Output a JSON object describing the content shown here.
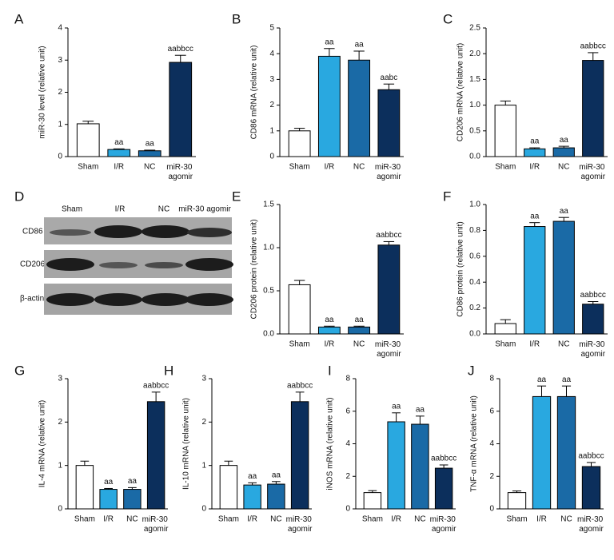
{
  "chart_data": [
    {
      "type": "bar",
      "panel_label": "A",
      "y_label": "miR-30 level (relative unit)",
      "categories": [
        "Sham",
        "I/R",
        "NC",
        "miR-30 agomir"
      ],
      "values": [
        1.02,
        0.22,
        0.18,
        2.93
      ],
      "errors": [
        0.08,
        0.02,
        0.02,
        0.22
      ],
      "value_labels": [
        null,
        "aa",
        "aa",
        "aabbcc"
      ],
      "colors": [
        "#ffffff",
        "#29a8e0",
        "#1a6aa6",
        "#0c2f5c"
      ],
      "ylim": [
        0,
        4
      ],
      "yticks": [
        0,
        1,
        2,
        3,
        4
      ]
    },
    {
      "type": "bar",
      "panel_label": "B",
      "y_label": "CD86 mRNA (relative unit)",
      "categories": [
        "Sham",
        "I/R",
        "NC",
        "miR-30 agomir"
      ],
      "values": [
        1.0,
        3.9,
        3.75,
        2.6
      ],
      "errors": [
        0.1,
        0.3,
        0.35,
        0.22
      ],
      "value_labels": [
        null,
        "aa",
        "aa",
        "aabc"
      ],
      "colors": [
        "#ffffff",
        "#29a8e0",
        "#1a6aa6",
        "#0c2f5c"
      ],
      "ylim": [
        0,
        5
      ],
      "yticks": [
        0,
        1,
        2,
        3,
        4,
        5
      ]
    },
    {
      "type": "bar",
      "panel_label": "C",
      "y_label": "CD206 mRNA (relative unit)",
      "categories": [
        "Sham",
        "I/R",
        "NC",
        "miR-30 agomir"
      ],
      "values": [
        1.0,
        0.15,
        0.17,
        1.87
      ],
      "errors": [
        0.08,
        0.02,
        0.03,
        0.15
      ],
      "value_labels": [
        null,
        "aa",
        "aa",
        "aabbcc"
      ],
      "colors": [
        "#ffffff",
        "#29a8e0",
        "#1a6aa6",
        "#0c2f5c"
      ],
      "ylim": [
        0,
        2.5
      ],
      "yticks": [
        {
          "value": 0,
          "label": "0.0"
        },
        0.5,
        {
          "value": 1,
          "label": "1.0"
        },
        1.5,
        {
          "value": 2,
          "label": "2.0"
        },
        2.5
      ]
    },
    {
      "type": "bar",
      "panel_label": "E",
      "y_label": "CD206 protein (relative unit)",
      "categories": [
        "Sham",
        "I/R",
        "NC",
        "miR-30 agomir"
      ],
      "values": [
        0.57,
        0.08,
        0.08,
        1.03
      ],
      "errors": [
        0.05,
        0.01,
        0.01,
        0.04
      ],
      "value_labels": [
        null,
        "aa",
        "aa",
        "aabbcc"
      ],
      "colors": [
        "#ffffff",
        "#29a8e0",
        "#1a6aa6",
        "#0c2f5c"
      ],
      "ylim": [
        0,
        1.5
      ],
      "yticks": [
        {
          "value": 0,
          "label": "0.0"
        },
        0.5,
        {
          "value": 1,
          "label": "1.0"
        },
        1.5
      ]
    },
    {
      "type": "bar",
      "panel_label": "F",
      "y_label": "CD86 protein (relative unit)",
      "categories": [
        "Sham",
        "I/R",
        "NC",
        "miR-30 agomir"
      ],
      "values": [
        0.08,
        0.83,
        0.87,
        0.23
      ],
      "errors": [
        0.03,
        0.03,
        0.03,
        0.02
      ],
      "value_labels": [
        null,
        "aa",
        "aa",
        "aabbcc"
      ],
      "colors": [
        "#ffffff",
        "#29a8e0",
        "#1a6aa6",
        "#0c2f5c"
      ],
      "ylim": [
        0,
        1
      ],
      "yticks": [
        {
          "value": 0,
          "label": "0.0"
        },
        0.2,
        0.4,
        0.6,
        0.8,
        {
          "value": 1,
          "label": "1.0"
        }
      ]
    },
    {
      "type": "bar",
      "panel_label": "G",
      "y_label": "IL-4 mRNA (relative unit)",
      "categories": [
        "Sham",
        "I/R",
        "NC",
        "miR-30 agomir"
      ],
      "values": [
        1.0,
        0.45,
        0.45,
        2.47
      ],
      "errors": [
        0.1,
        0.02,
        0.04,
        0.22
      ],
      "value_labels": [
        null,
        "aa",
        "aa",
        "aabbcc"
      ],
      "colors": [
        "#ffffff",
        "#29a8e0",
        "#1a6aa6",
        "#0c2f5c"
      ],
      "ylim": [
        0,
        3
      ],
      "yticks": [
        0,
        1,
        2,
        3
      ]
    },
    {
      "type": "bar",
      "panel_label": "H",
      "y_label": "IL-10 mRNA (relative unit)",
      "categories": [
        "Sham",
        "I/R",
        "NC",
        "miR-30 agomir"
      ],
      "values": [
        1.0,
        0.55,
        0.57,
        2.47
      ],
      "errors": [
        0.1,
        0.05,
        0.06,
        0.22
      ],
      "value_labels": [
        null,
        "aa",
        "aa",
        "aabbcc"
      ],
      "colors": [
        "#ffffff",
        "#29a8e0",
        "#1a6aa6",
        "#0c2f5c"
      ],
      "ylim": [
        0,
        3
      ],
      "yticks": [
        0,
        1,
        2,
        3
      ]
    },
    {
      "type": "bar",
      "panel_label": "I",
      "y_label": "iNOS mRNA (relative unit)",
      "categories": [
        "Sham",
        "I/R",
        "NC",
        "miR-30 agomir"
      ],
      "values": [
        1.0,
        5.35,
        5.2,
        2.5
      ],
      "errors": [
        0.12,
        0.55,
        0.5,
        0.2
      ],
      "value_labels": [
        null,
        "aa",
        "aa",
        "aabbcc"
      ],
      "colors": [
        "#ffffff",
        "#29a8e0",
        "#1a6aa6",
        "#0c2f5c"
      ],
      "ylim": [
        0,
        8
      ],
      "yticks": [
        0,
        2,
        4,
        6,
        8
      ]
    },
    {
      "type": "bar",
      "panel_label": "J",
      "y_label": "TNF-α mRNA (relative unit)",
      "categories": [
        "Sham",
        "I/R",
        "NC",
        "miR-30 agomir"
      ],
      "values": [
        1.0,
        6.9,
        6.9,
        2.6
      ],
      "errors": [
        0.1,
        0.65,
        0.65,
        0.25
      ],
      "value_labels": [
        null,
        "aa",
        "aa",
        "aabbcc"
      ],
      "colors": [
        "#ffffff",
        "#29a8e0",
        "#1a6aa6",
        "#0c2f5c"
      ],
      "ylim": [
        0,
        8
      ],
      "yticks": [
        0,
        2,
        4,
        6,
        8
      ]
    }
  ],
  "blot": {
    "panel_label": "D",
    "lanes": [
      "Sham",
      "I/R",
      "NC",
      "miR-30 agomir"
    ],
    "rows": [
      "CD86",
      "CD206",
      "β-actin"
    ]
  }
}
